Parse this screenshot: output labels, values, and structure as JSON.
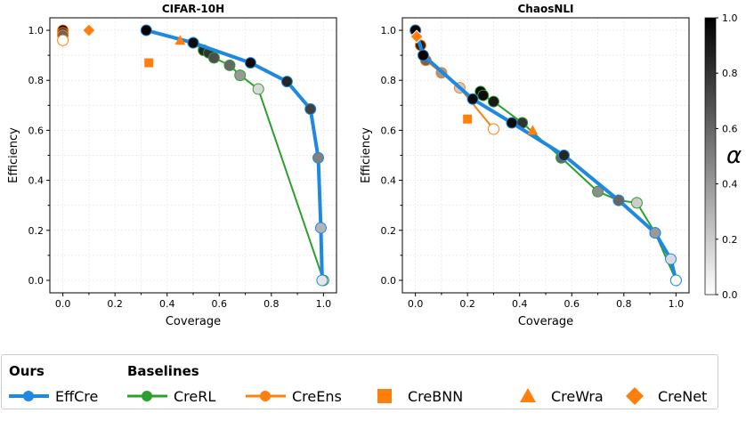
{
  "chart_data": [
    {
      "type": "line",
      "title": "CIFAR-10H",
      "xlabel": "Coverage",
      "ylabel": "Efficiency",
      "xlim": [
        -0.05,
        1.05
      ],
      "ylim": [
        -0.05,
        1.05
      ],
      "xticks": [
        "0.0",
        "0.2",
        "0.4",
        "0.6",
        "0.8",
        "1.0"
      ],
      "yticks": [
        "0.0",
        "0.2",
        "0.4",
        "0.6",
        "0.8",
        "1.0"
      ],
      "grid": true,
      "series": [
        {
          "name": "CreRL",
          "color": "#2ca02c",
          "points": [
            [
              0.5,
              0.95,
              0.9
            ],
            [
              0.54,
              0.92,
              0.85
            ],
            [
              0.56,
              0.91,
              0.8
            ],
            [
              0.58,
              0.89,
              0.7
            ],
            [
              0.64,
              0.86,
              0.6
            ],
            [
              0.68,
              0.82,
              0.4
            ],
            [
              0.75,
              0.765,
              0.15
            ],
            [
              1.0,
              0.0,
              0.0
            ]
          ]
        },
        {
          "name": "CreEns",
          "color": "#ff7f0e",
          "points": [
            [
              0.0,
              1.0,
              1.0
            ],
            [
              0.0,
              0.99,
              0.8
            ],
            [
              0.0,
              0.98,
              0.6
            ],
            [
              0.0,
              0.96,
              0.0
            ]
          ]
        },
        {
          "name": "EffCre",
          "color": "#1f88e0",
          "points": [
            [
              0.32,
              1.0,
              1.0
            ],
            [
              0.5,
              0.95,
              0.95
            ],
            [
              0.72,
              0.87,
              0.95
            ],
            [
              0.86,
              0.795,
              0.85
            ],
            [
              0.95,
              0.685,
              0.75
            ],
            [
              0.98,
              0.49,
              0.5
            ],
            [
              0.99,
              0.21,
              0.3
            ],
            [
              0.995,
              0.0,
              0.1
            ]
          ]
        }
      ],
      "markers": [
        {
          "name": "CreBNN",
          "shape": "square",
          "x": 0.33,
          "y": 0.87
        },
        {
          "name": "CreWra",
          "shape": "triangle",
          "x": 0.45,
          "y": 0.96
        },
        {
          "name": "CreNet",
          "shape": "diamond",
          "x": 0.1,
          "y": 1.0
        }
      ]
    },
    {
      "type": "line",
      "title": "ChaosNLI",
      "xlabel": "Coverage",
      "ylabel": "Efficiency",
      "xlim": [
        -0.05,
        1.05
      ],
      "ylim": [
        -0.05,
        1.05
      ],
      "xticks": [
        "0.0",
        "0.2",
        "0.4",
        "0.6",
        "0.8",
        "1.0"
      ],
      "yticks": [
        "0.0",
        "0.2",
        "0.4",
        "0.6",
        "0.8",
        "1.0"
      ],
      "grid": true,
      "series": [
        {
          "name": "CreRL",
          "color": "#2ca02c",
          "points": [
            [
              0.25,
              0.755,
              1.0
            ],
            [
              0.26,
              0.74,
              0.95
            ],
            [
              0.3,
              0.715,
              0.9
            ],
            [
              0.41,
              0.63,
              0.8
            ],
            [
              0.56,
              0.49,
              0.6
            ],
            [
              0.7,
              0.355,
              0.45
            ],
            [
              0.78,
              0.32,
              0.6
            ],
            [
              0.85,
              0.31,
              0.2
            ],
            [
              0.92,
              0.19,
              0.4
            ],
            [
              1.0,
              0.0,
              0.0
            ]
          ]
        },
        {
          "name": "CreEns",
          "color": "#ff7f0e",
          "points": [
            [
              0.0,
              1.0,
              1.0
            ],
            [
              0.02,
              0.94,
              0.85
            ],
            [
              0.04,
              0.88,
              0.6
            ],
            [
              0.1,
              0.83,
              0.4
            ],
            [
              0.17,
              0.77,
              0.2
            ],
            [
              0.3,
              0.605,
              0.0
            ]
          ]
        },
        {
          "name": "EffCre",
          "color": "#1f88e0",
          "points": [
            [
              0.0,
              1.0,
              1.0
            ],
            [
              0.03,
              0.9,
              1.0
            ],
            [
              0.22,
              0.725,
              0.95
            ],
            [
              0.37,
              0.63,
              0.95
            ],
            [
              0.57,
              0.5,
              0.85
            ],
            [
              0.78,
              0.32,
              0.6
            ],
            [
              0.92,
              0.19,
              0.4
            ],
            [
              0.98,
              0.085,
              0.15
            ],
            [
              1.0,
              0.0,
              0.0
            ]
          ]
        }
      ],
      "markers": [
        {
          "name": "CreBNN",
          "shape": "square",
          "x": 0.2,
          "y": 0.645
        },
        {
          "name": "CreWra",
          "shape": "triangle",
          "x": 0.45,
          "y": 0.6
        },
        {
          "name": "CreNet",
          "shape": "diamond",
          "x": 0.005,
          "y": 0.975
        }
      ]
    }
  ],
  "colorbar": {
    "label": "α",
    "ticks": [
      "0.0",
      "0.2",
      "0.4",
      "0.6",
      "0.8",
      "1.0"
    ],
    "range": [
      0,
      1
    ]
  },
  "legend": {
    "ours_title": "Ours",
    "baselines_title": "Baselines",
    "entries": [
      "EffCre",
      "CreRL",
      "CreEns",
      "CreBNN",
      "CreWra",
      "CreNet"
    ],
    "orange": "#ff7f0e",
    "blue": "#1f88e0",
    "green": "#2ca02c"
  }
}
